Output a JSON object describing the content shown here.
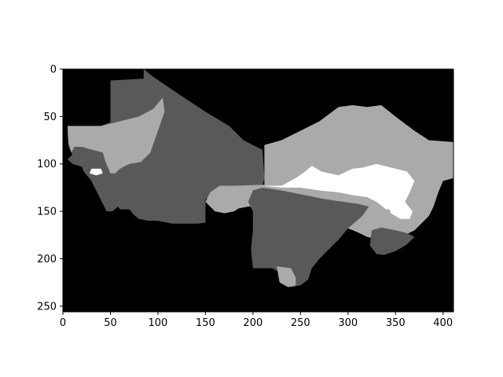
{
  "chart_data": {
    "type": "heatmap",
    "title": "",
    "xlabel": "",
    "ylabel": "",
    "xlim": [
      0,
      411
    ],
    "ylim": [
      256,
      0
    ],
    "x_ticks": [
      0,
      50,
      100,
      150,
      200,
      250,
      300,
      350,
      400
    ],
    "y_ticks": [
      0,
      50,
      100,
      150,
      200,
      250
    ],
    "x_tick_labels": [
      "0",
      "50",
      "100",
      "150",
      "200",
      "250",
      "300",
      "350",
      "400"
    ],
    "y_tick_labels": [
      "0",
      "50",
      "100",
      "150",
      "200",
      "250"
    ],
    "colormap": "gray",
    "grid": false,
    "levels": [
      {
        "value": 0,
        "color": "#000000"
      },
      {
        "value": 1,
        "color": "#595959"
      },
      {
        "value": 2,
        "color": "#aaaaaa"
      },
      {
        "value": 3,
        "color": "#ffffff"
      }
    ],
    "regions": [
      {
        "value": 1,
        "points": [
          [
            85,
            0
          ],
          [
            95,
            8
          ],
          [
            120,
            25
          ],
          [
            150,
            45
          ],
          [
            175,
            60
          ],
          [
            190,
            75
          ],
          [
            200,
            80
          ],
          [
            210,
            85
          ],
          [
            212,
            115
          ],
          [
            210,
            123
          ],
          [
            200,
            123
          ],
          [
            190,
            125
          ],
          [
            180,
            127
          ],
          [
            170,
            130
          ],
          [
            160,
            133
          ],
          [
            150,
            137
          ],
          [
            150,
            150
          ],
          [
            150,
            162
          ],
          [
            142,
            163
          ],
          [
            120,
            163
          ],
          [
            115,
            163
          ],
          [
            110,
            162
          ],
          [
            100,
            160
          ],
          [
            90,
            160
          ],
          [
            80,
            158
          ],
          [
            75,
            154
          ],
          [
            70,
            148
          ],
          [
            60,
            148
          ],
          [
            58,
            145
          ],
          [
            52,
            150
          ],
          [
            46,
            150
          ],
          [
            42,
            142
          ],
          [
            36,
            130
          ],
          [
            30,
            118
          ],
          [
            22,
            108
          ],
          [
            20,
            103
          ],
          [
            10,
            100
          ],
          [
            5,
            95
          ],
          [
            10,
            90
          ],
          [
            6,
            82
          ],
          [
            5,
            70
          ],
          [
            5,
            60
          ],
          [
            40,
            60
          ],
          [
            50,
            56
          ],
          [
            50,
            12
          ],
          [
            85,
            10
          ]
        ]
      },
      {
        "value": 2,
        "points": [
          [
            5,
            60
          ],
          [
            40,
            60
          ],
          [
            60,
            55
          ],
          [
            80,
            50
          ],
          [
            95,
            42
          ],
          [
            105,
            30
          ],
          [
            107,
            45
          ],
          [
            92,
            88
          ],
          [
            82,
            98
          ],
          [
            70,
            100
          ],
          [
            60,
            105
          ],
          [
            55,
            110
          ],
          [
            50,
            110
          ],
          [
            45,
            98
          ],
          [
            42,
            88
          ],
          [
            20,
            82
          ],
          [
            12,
            82
          ],
          [
            9,
            88
          ],
          [
            6,
            78
          ]
        ]
      },
      {
        "value": 2,
        "points": [
          [
            212,
            80
          ],
          [
            230,
            75
          ],
          [
            250,
            65
          ],
          [
            270,
            55
          ],
          [
            290,
            40
          ],
          [
            305,
            38
          ],
          [
            320,
            40
          ],
          [
            335,
            38
          ],
          [
            350,
            50
          ],
          [
            370,
            65
          ],
          [
            385,
            75
          ],
          [
            411,
            77
          ],
          [
            411,
            115
          ],
          [
            400,
            118
          ],
          [
            395,
            130
          ],
          [
            390,
            145
          ],
          [
            385,
            155
          ],
          [
            375,
            165
          ],
          [
            370,
            170
          ],
          [
            360,
            175
          ],
          [
            345,
            180
          ],
          [
            335,
            180
          ],
          [
            320,
            177
          ],
          [
            310,
            172
          ],
          [
            300,
            168
          ],
          [
            290,
            162
          ],
          [
            275,
            157
          ],
          [
            265,
            155
          ],
          [
            245,
            150
          ],
          [
            230,
            147
          ],
          [
            210,
            145
          ],
          [
            195,
            145
          ],
          [
            185,
            147
          ],
          [
            180,
            150
          ],
          [
            170,
            152
          ],
          [
            160,
            150
          ],
          [
            150,
            140
          ],
          [
            155,
            130
          ],
          [
            165,
            123
          ],
          [
            180,
            123
          ],
          [
            212,
            122
          ]
        ]
      },
      {
        "value": 1,
        "points": [
          [
            200,
            128
          ],
          [
            210,
            125
          ],
          [
            230,
            128
          ],
          [
            250,
            132
          ],
          [
            275,
            137
          ],
          [
            295,
            140
          ],
          [
            310,
            142
          ],
          [
            322,
            145
          ],
          [
            315,
            155
          ],
          [
            300,
            168
          ],
          [
            290,
            180
          ],
          [
            280,
            190
          ],
          [
            270,
            200
          ],
          [
            262,
            210
          ],
          [
            258,
            222
          ],
          [
            250,
            228
          ],
          [
            240,
            230
          ],
          [
            235,
            222
          ],
          [
            230,
            215
          ],
          [
            220,
            210
          ],
          [
            200,
            210
          ],
          [
            198,
            190
          ],
          [
            200,
            170
          ],
          [
            200,
            150
          ],
          [
            195,
            140
          ]
        ]
      },
      {
        "value": 2,
        "points": [
          [
            225,
            208
          ],
          [
            240,
            210
          ],
          [
            245,
            220
          ],
          [
            245,
            228
          ],
          [
            237,
            230
          ],
          [
            228,
            225
          ]
        ]
      },
      {
        "value": 1,
        "points": [
          [
            325,
            170
          ],
          [
            335,
            167
          ],
          [
            350,
            170
          ],
          [
            362,
            173
          ],
          [
            370,
            177
          ],
          [
            362,
            185
          ],
          [
            350,
            192
          ],
          [
            338,
            196
          ],
          [
            330,
            195
          ],
          [
            323,
            186
          ]
        ]
      },
      {
        "value": 3,
        "points": [
          [
            210,
            123
          ],
          [
            230,
            123
          ],
          [
            245,
            115
          ],
          [
            255,
            108
          ],
          [
            262,
            102
          ],
          [
            272,
            108
          ],
          [
            290,
            112
          ],
          [
            305,
            105
          ],
          [
            315,
            104
          ],
          [
            330,
            100
          ],
          [
            350,
            105
          ],
          [
            362,
            108
          ],
          [
            370,
            118
          ],
          [
            365,
            130
          ],
          [
            360,
            140
          ],
          [
            352,
            148
          ],
          [
            340,
            148
          ],
          [
            330,
            140
          ],
          [
            320,
            135
          ],
          [
            305,
            133
          ],
          [
            290,
            130
          ],
          [
            270,
            128
          ],
          [
            250,
            125
          ],
          [
            230,
            125
          ]
        ]
      },
      {
        "value": 3,
        "points": [
          [
            343,
            145
          ],
          [
            360,
            140
          ],
          [
            368,
            150
          ],
          [
            365,
            158
          ],
          [
            355,
            158
          ],
          [
            345,
            152
          ]
        ]
      },
      {
        "value": 3,
        "points": [
          [
            30,
            105
          ],
          [
            40,
            105
          ],
          [
            42,
            110
          ],
          [
            35,
            112
          ],
          [
            28,
            110
          ]
        ]
      }
    ]
  }
}
